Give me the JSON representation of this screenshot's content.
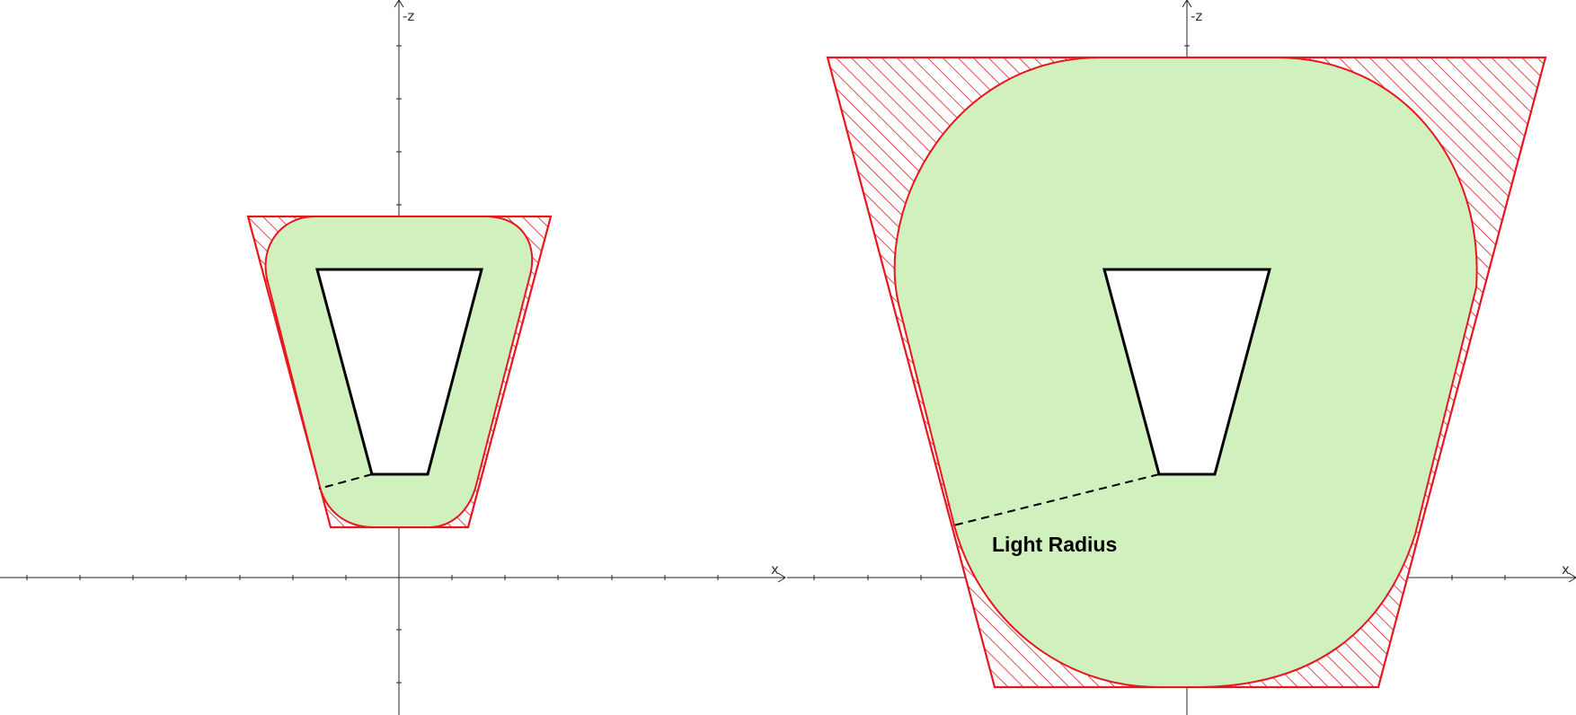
{
  "axes": {
    "x_label": "x",
    "z_label": "-z"
  },
  "colors": {
    "light_fill": "#d0f0be",
    "boundary_red": "#e8161e",
    "hatch_red": "#e8161e",
    "core_outline": "#000000"
  },
  "panels": [
    {
      "id": "left",
      "callout": ""
    },
    {
      "id": "right",
      "callout": "Light Radius"
    }
  ]
}
